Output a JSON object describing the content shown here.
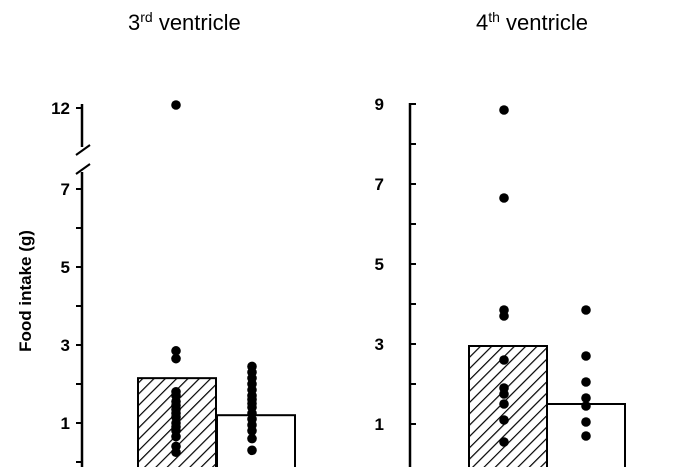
{
  "chart_data": [
    {
      "type": "bar",
      "title": {
        "main": "3",
        "sup": "rd",
        "rest": " ventricle"
      },
      "ylabel": "Food intake (g)",
      "y_break": true,
      "yticks": [
        "1",
        "3",
        "5",
        "7",
        "12"
      ],
      "ylim_lower": [
        0,
        7.5
      ],
      "ylim_upper_tick": 12,
      "bars": [
        {
          "pattern": "hatched",
          "value": 2.15
        },
        {
          "pattern": "open",
          "value": 1.2
        }
      ],
      "points": [
        [
          12.1,
          2.85,
          2.65,
          1.8,
          1.7,
          1.55,
          1.45,
          1.35,
          1.25,
          1.15,
          1.0,
          0.9,
          0.8,
          0.65,
          0.4,
          0.25
        ],
        [
          2.45,
          2.3,
          2.15,
          2.0,
          1.85,
          1.7,
          1.6,
          1.5,
          1.4,
          1.25,
          1.1,
          0.95,
          0.8,
          0.6,
          0.3
        ]
      ]
    },
    {
      "type": "bar",
      "title": {
        "main": "4",
        "sup": "th",
        "rest": " ventricle"
      },
      "ylabel": "",
      "y_break": false,
      "yticks": [
        "1",
        "3",
        "5",
        "7",
        "9"
      ],
      "ylim": [
        0,
        9
      ],
      "bars": [
        {
          "pattern": "hatched",
          "value": 2.95
        },
        {
          "pattern": "open",
          "value": 1.5
        }
      ],
      "points": [
        [
          8.85,
          6.65,
          3.85,
          3.7,
          2.6,
          1.9,
          1.75,
          1.5,
          1.1,
          0.55
        ],
        [
          3.85,
          2.7,
          2.05,
          1.65,
          1.45,
          1.05,
          0.7
        ]
      ]
    }
  ]
}
